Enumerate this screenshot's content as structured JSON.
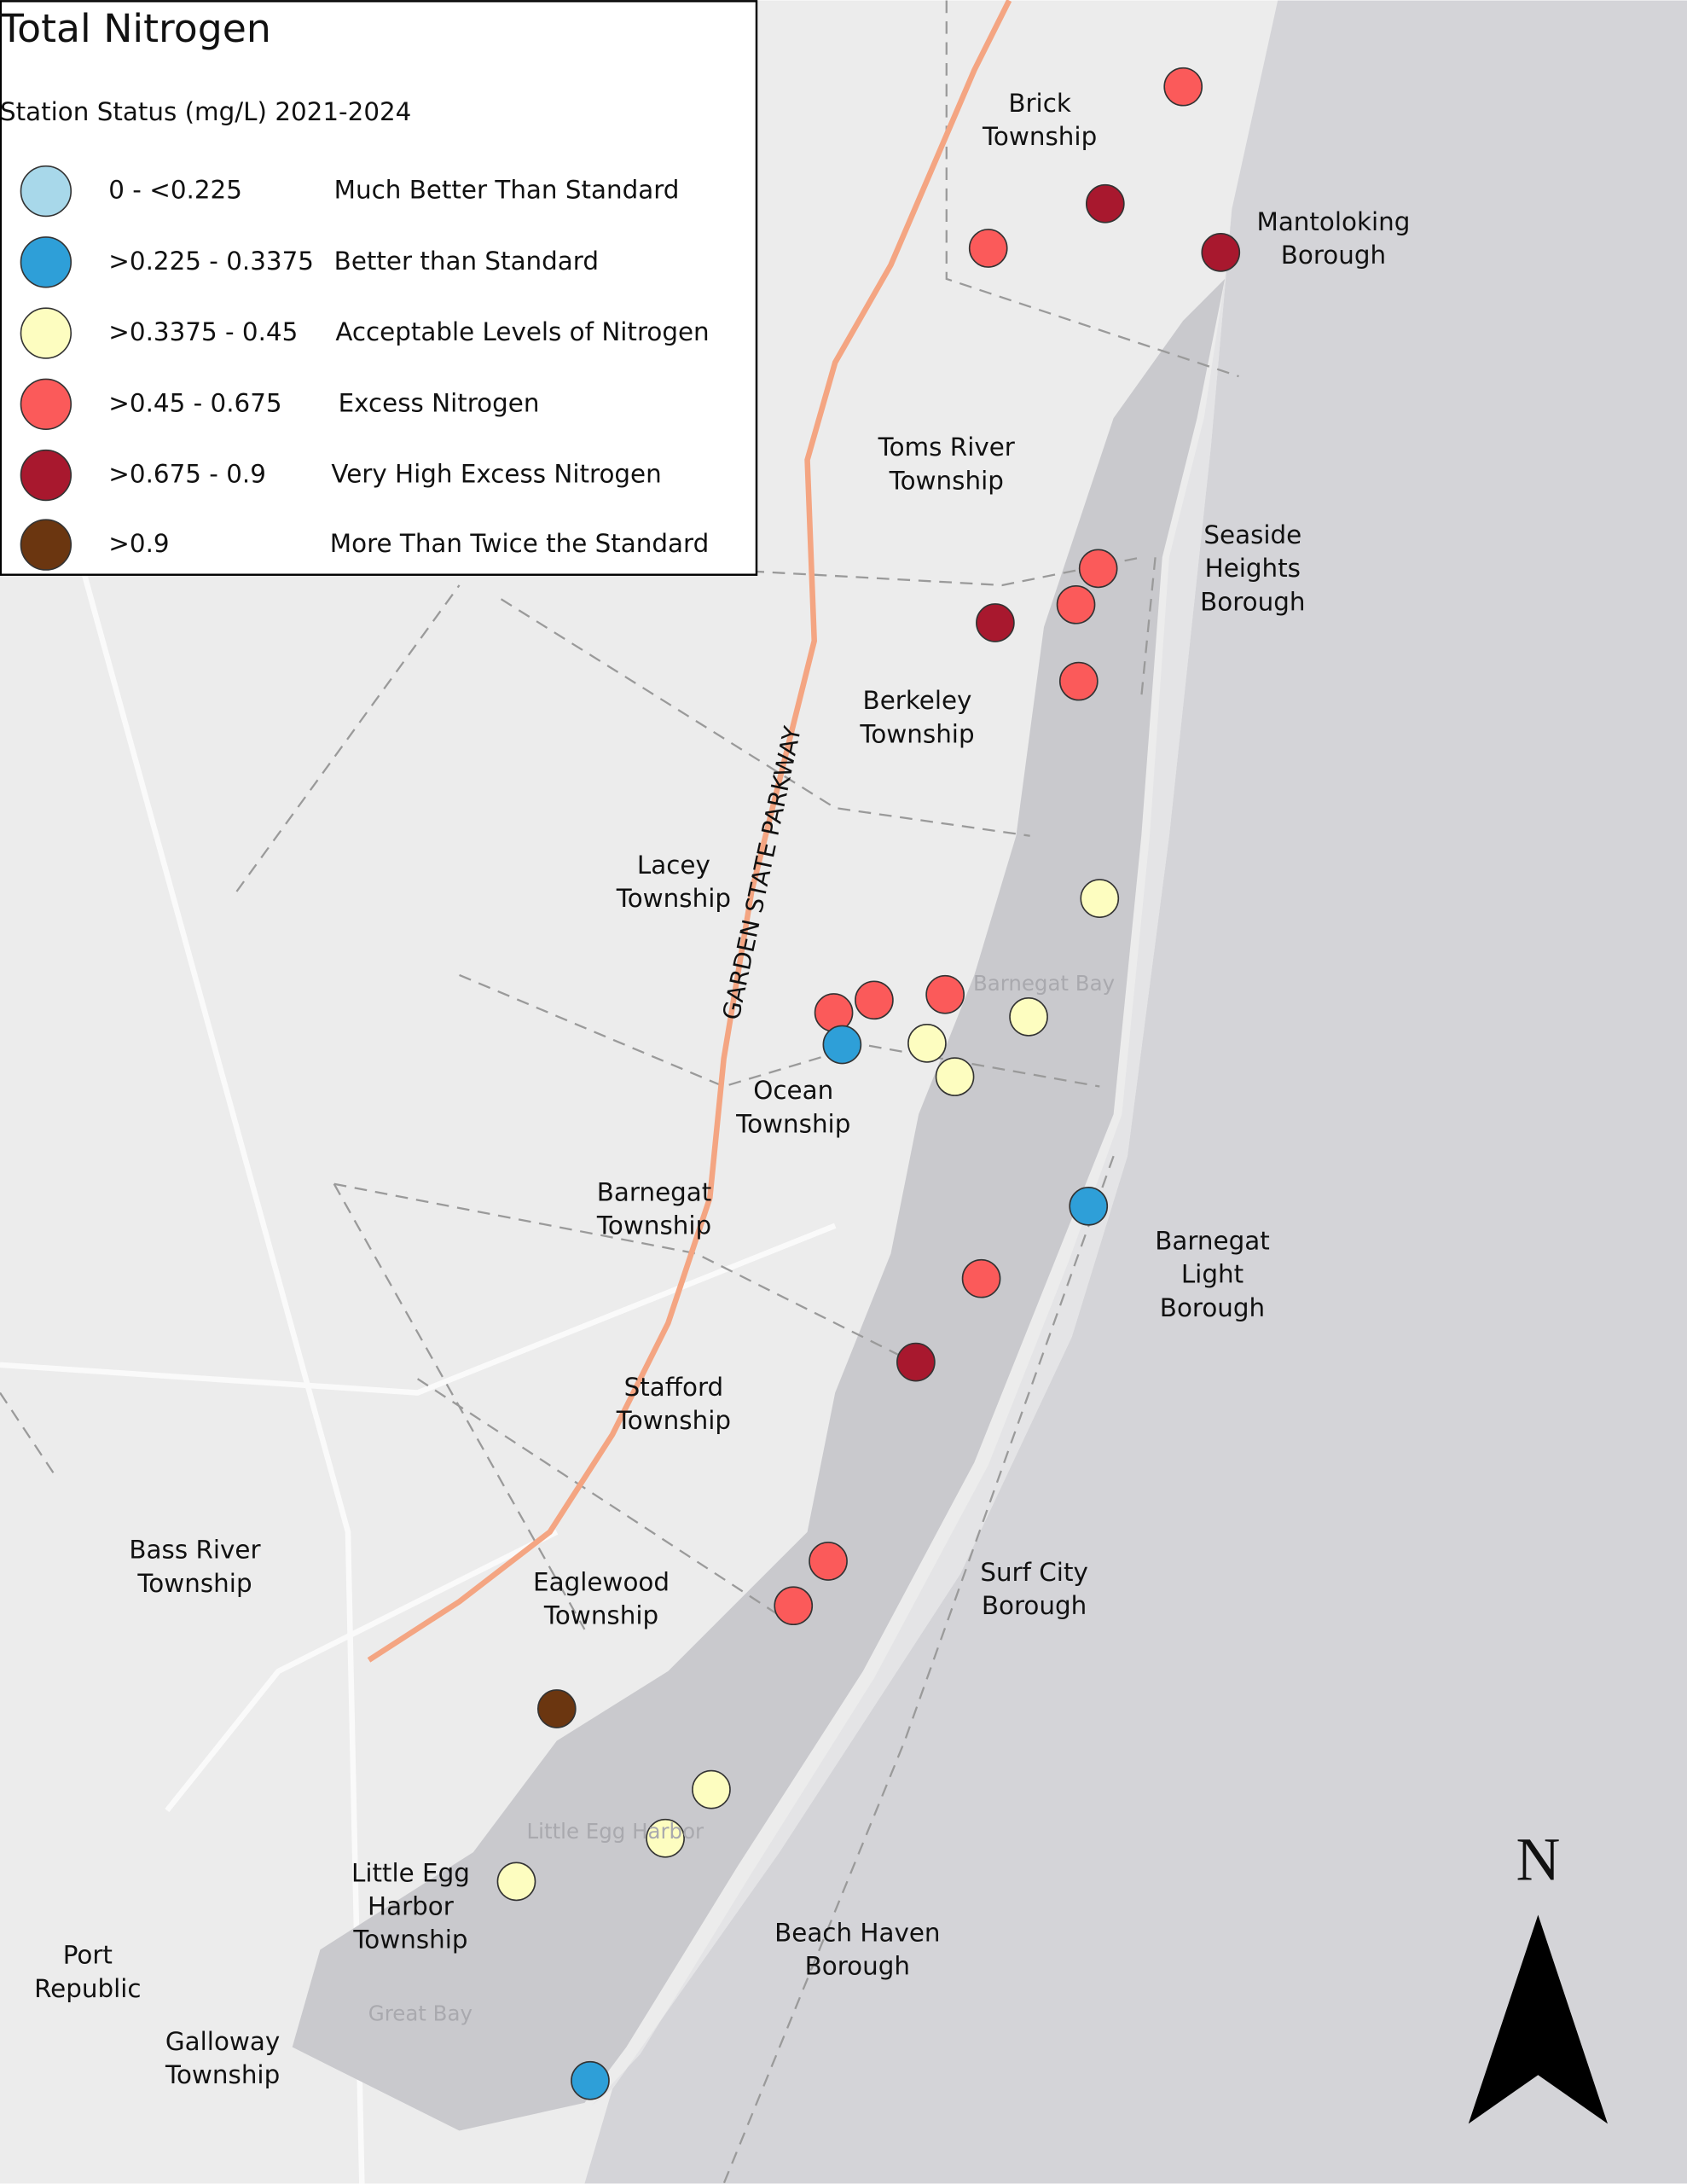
{
  "title": "Total Nitrogen",
  "subtitle": "Station Status (mg/L) 2021-2024",
  "legend": {
    "items": [
      {
        "range": "0 - <0.225",
        "label": "Much Better Than Standard",
        "color": "#a8d8ea"
      },
      {
        "range": ">0.225 - 0.3375",
        "label": "Better than Standard",
        "color": "#2e9fd8"
      },
      {
        "range": ">0.3375 - 0.45",
        "label": "Acceptable Levels of Nitrogen",
        "color": "#fdfdc0"
      },
      {
        "range": ">0.45 - 0.675",
        "label": "Excess Nitrogen",
        "color": "#fb5a5a"
      },
      {
        "range": ">0.675 - 0.9",
        "label": "Very High Excess Nitrogen",
        "color": "#a8182e"
      },
      {
        "range": ">0.9",
        "label": "More Than Twice the Standard",
        "color": "#6b3610"
      }
    ]
  },
  "places": [
    [
      "Brick",
      "Township"
    ],
    [
      "Mantoloking",
      "Borough"
    ],
    [
      "Toms River",
      "Township"
    ],
    [
      "Seaside",
      "Heights",
      "Borough"
    ],
    [
      "Berkeley",
      "Township"
    ],
    [
      "Lacey",
      "Township"
    ],
    [
      "Ocean",
      "Township"
    ],
    [
      "Barnegat",
      "Township"
    ],
    [
      "Barnegat",
      "Light",
      "Borough"
    ],
    [
      "Stafford",
      "Township"
    ],
    [
      "Bass River",
      "Township"
    ],
    [
      "Eaglewood",
      "Township"
    ],
    [
      "Surf City",
      "Borough"
    ],
    [
      "Little Egg",
      "Harbor",
      "Township"
    ],
    [
      "Beach Haven",
      "Borough"
    ],
    [
      "Port",
      "Republic"
    ],
    [
      "Galloway",
      "Township"
    ]
  ],
  "water": [
    "Barnegat Bay",
    "Little Egg Harbor",
    "Great Bay"
  ],
  "road": "GARDEN STATE PARKWAY",
  "north": "N"
}
